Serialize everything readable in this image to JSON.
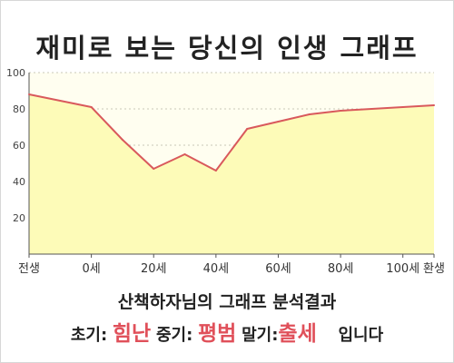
{
  "title": "재미로 보는 당신의 인생 그래프",
  "subtitle": "산책하자님의 그래프 분석결과",
  "result": {
    "early_label": "초기:",
    "early_value": "힘난",
    "middle_label": "중기:",
    "middle_value": "평범",
    "late_label": "말기:",
    "late_value": "출세",
    "suffix": "입니다",
    "value_color": "#e0505a"
  },
  "chart_data": {
    "type": "area",
    "title": "재미로 보는 당신의 인생 그래프",
    "categories": [
      "전생",
      "0세",
      "20세",
      "40세",
      "60세",
      "80세",
      "100세",
      "환생"
    ],
    "x": [
      -20,
      0,
      10,
      20,
      30,
      40,
      50,
      60,
      70,
      80,
      90,
      100,
      110
    ],
    "values": [
      88,
      81,
      63,
      47,
      55,
      46,
      69,
      73,
      77,
      79,
      80,
      81,
      82
    ],
    "yticks": [
      20,
      40,
      60,
      80,
      100
    ],
    "ylim": [
      0,
      100
    ],
    "xlim": [
      -20,
      110
    ],
    "grid": true,
    "colors": {
      "line": "#d9595c",
      "fill": "#fdfbb8",
      "plot_bg": "#fffef0",
      "grid": "#c8c8b8"
    }
  }
}
